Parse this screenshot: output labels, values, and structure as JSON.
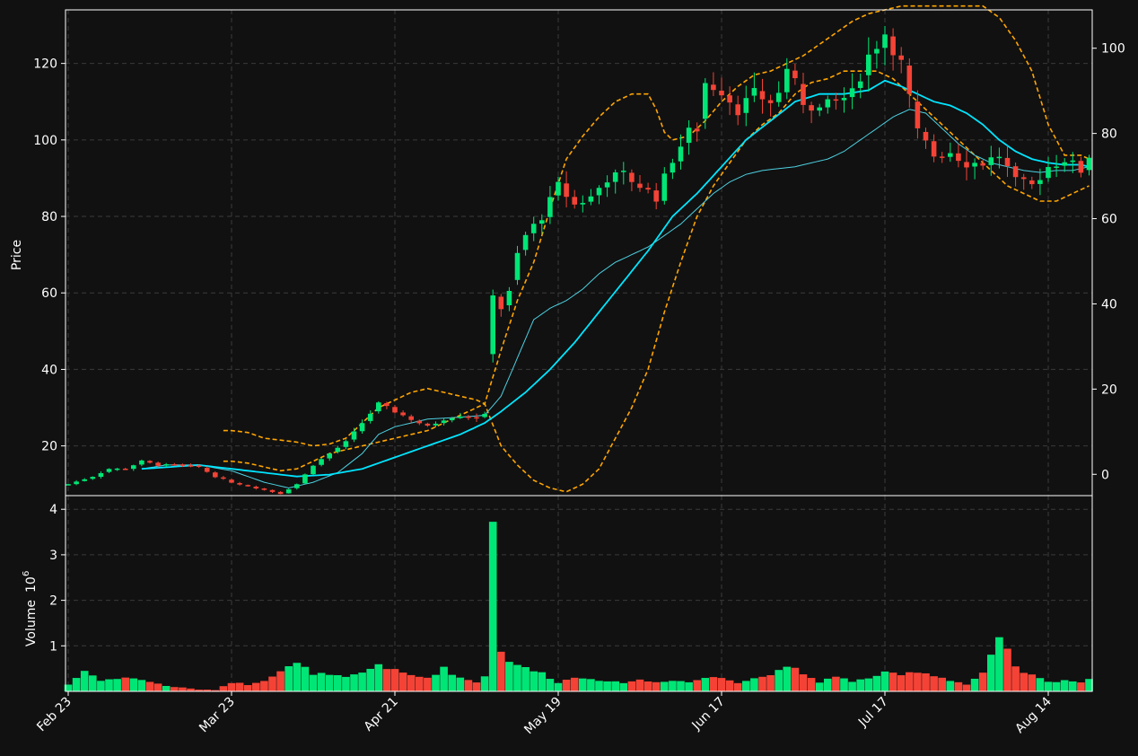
{
  "chart_data": {
    "type": "candlestick",
    "price_panel": {
      "ylabel": "Price",
      "ylim": [
        7,
        134
      ],
      "left_ticks": [
        20,
        40,
        60,
        80,
        100,
        120
      ],
      "secondary_ylim": [
        -5,
        109
      ],
      "right_ticks": [
        0,
        20,
        40,
        60,
        80,
        100
      ],
      "grid": true,
      "candle_up_color": "#00e676",
      "candle_down_color": "#f44336",
      "ma_fast_color": "#4dd0e1",
      "ma_slow_color": "#00e5ff",
      "band_color": "#ffa500"
    },
    "volume_panel": {
      "ylabel": "Volume",
      "ylabel_exponent": "10^6",
      "ylim": [
        0,
        4.3
      ],
      "ticks": [
        1,
        2,
        3,
        4
      ],
      "grid": true
    },
    "x_axis": {
      "ticks": [
        {
          "label": "Feb 23",
          "index": 0
        },
        {
          "label": "Mar 23",
          "index": 20
        },
        {
          "label": "Apr 21",
          "index": 40
        },
        {
          "label": "May 19",
          "index": 60
        },
        {
          "label": "Jun 17",
          "index": 80
        },
        {
          "label": "Jul 17",
          "index": 100
        },
        {
          "label": "Aug 14",
          "index": 120
        }
      ],
      "session_count": 126
    },
    "anchors": {
      "close": [
        [
          0,
          10
        ],
        [
          3,
          12
        ],
        [
          5,
          14
        ],
        [
          7,
          14
        ],
        [
          9,
          16
        ],
        [
          11,
          15
        ],
        [
          13,
          15
        ],
        [
          16,
          14.5
        ],
        [
          18,
          12
        ],
        [
          20,
          10.5
        ],
        [
          23,
          9
        ],
        [
          26,
          7.5
        ],
        [
          28,
          10
        ],
        [
          30,
          15
        ],
        [
          32,
          18
        ],
        [
          34,
          21
        ],
        [
          36,
          26
        ],
        [
          38,
          31
        ],
        [
          40,
          29
        ],
        [
          42,
          27
        ],
        [
          44,
          25
        ],
        [
          46,
          27
        ],
        [
          48,
          28
        ],
        [
          50,
          27.5
        ],
        [
          51,
          28
        ],
        [
          52,
          60
        ],
        [
          53,
          56
        ],
        [
          54,
          60
        ],
        [
          55,
          70
        ],
        [
          56,
          75
        ],
        [
          58,
          80
        ],
        [
          60,
          88
        ],
        [
          62,
          83
        ],
        [
          64,
          85
        ],
        [
          66,
          90
        ],
        [
          68,
          91
        ],
        [
          70,
          88
        ],
        [
          72,
          85
        ],
        [
          74,
          95
        ],
        [
          76,
          102
        ],
        [
          77,
          103
        ],
        [
          78,
          115
        ],
        [
          80,
          113
        ],
        [
          82,
          108
        ],
        [
          84,
          112
        ],
        [
          86,
          110
        ],
        [
          87,
          112
        ],
        [
          88,
          119
        ],
        [
          90,
          110
        ],
        [
          92,
          108
        ],
        [
          94,
          110
        ],
        [
          96,
          112
        ],
        [
          98,
          122
        ],
        [
          100,
          128
        ],
        [
          102,
          120
        ],
        [
          104,
          102
        ],
        [
          106,
          96
        ],
        [
          108,
          97
        ],
        [
          110,
          94
        ],
        [
          112,
          94
        ],
        [
          114,
          96
        ],
        [
          116,
          89
        ],
        [
          118,
          88
        ],
        [
          120,
          93
        ],
        [
          122,
          95
        ],
        [
          124,
          92
        ],
        [
          125,
          96
        ]
      ],
      "ma_fast": [
        [
          9,
          14
        ],
        [
          12,
          15
        ],
        [
          16,
          15
        ],
        [
          20,
          13.5
        ],
        [
          24,
          10.5
        ],
        [
          27,
          9
        ],
        [
          30,
          10.5
        ],
        [
          33,
          13
        ],
        [
          36,
          18
        ],
        [
          38,
          23
        ],
        [
          40,
          25
        ],
        [
          44,
          27
        ],
        [
          48,
          27.5
        ],
        [
          51,
          28
        ],
        [
          53,
          33
        ],
        [
          55,
          43
        ],
        [
          57,
          53
        ],
        [
          59,
          56
        ],
        [
          61,
          58
        ],
        [
          63,
          61
        ],
        [
          65,
          65
        ],
        [
          67,
          68
        ],
        [
          69,
          70
        ],
        [
          71,
          72
        ],
        [
          73,
          75
        ],
        [
          75,
          78
        ],
        [
          77,
          82
        ],
        [
          79,
          86
        ],
        [
          81,
          89
        ],
        [
          83,
          91
        ],
        [
          85,
          92
        ],
        [
          87,
          92.5
        ],
        [
          89,
          93
        ],
        [
          91,
          94
        ],
        [
          93,
          95
        ],
        [
          95,
          97
        ],
        [
          97,
          100
        ],
        [
          99,
          103
        ],
        [
          101,
          106
        ],
        [
          103,
          108
        ],
        [
          105,
          107
        ],
        [
          107,
          103
        ],
        [
          109,
          99
        ],
        [
          111,
          96
        ],
        [
          113,
          94
        ],
        [
          115,
          93
        ],
        [
          117,
          92
        ],
        [
          119,
          91.5
        ],
        [
          121,
          92
        ],
        [
          123,
          92
        ],
        [
          125,
          93
        ]
      ],
      "ma_slow": [
        [
          9,
          14
        ],
        [
          16,
          15
        ],
        [
          20,
          14
        ],
        [
          24,
          13
        ],
        [
          28,
          12
        ],
        [
          32,
          12.5
        ],
        [
          36,
          14
        ],
        [
          40,
          17
        ],
        [
          44,
          20
        ],
        [
          48,
          23
        ],
        [
          51,
          26
        ],
        [
          53,
          29
        ],
        [
          56,
          34
        ],
        [
          59,
          40
        ],
        [
          62,
          47
        ],
        [
          65,
          55
        ],
        [
          68,
          63
        ],
        [
          71,
          71
        ],
        [
          74,
          80
        ],
        [
          77,
          86
        ],
        [
          80,
          93
        ],
        [
          83,
          100
        ],
        [
          86,
          105
        ],
        [
          89,
          110
        ],
        [
          92,
          112
        ],
        [
          95,
          112
        ],
        [
          98,
          113
        ],
        [
          100,
          115.5
        ],
        [
          102,
          114
        ],
        [
          104,
          112
        ],
        [
          106,
          110
        ],
        [
          108,
          109
        ],
        [
          110,
          107
        ],
        [
          112,
          104
        ],
        [
          114,
          100
        ],
        [
          116,
          97
        ],
        [
          118,
          95
        ],
        [
          120,
          94
        ],
        [
          122,
          93.5
        ],
        [
          124,
          93.5
        ],
        [
          125,
          93
        ]
      ],
      "band_upper": [
        [
          19,
          24
        ],
        [
          20,
          24
        ],
        [
          22,
          23.5
        ],
        [
          24,
          22
        ],
        [
          26,
          21.5
        ],
        [
          28,
          21
        ],
        [
          30,
          20
        ],
        [
          32,
          20.5
        ],
        [
          34,
          22
        ],
        [
          36,
          26
        ],
        [
          38,
          30
        ],
        [
          40,
          32
        ],
        [
          42,
          34
        ],
        [
          44,
          35
        ],
        [
          46,
          34
        ],
        [
          48,
          33
        ],
        [
          50,
          32
        ],
        [
          51,
          31
        ],
        [
          53,
          45
        ],
        [
          55,
          58
        ],
        [
          57,
          68
        ],
        [
          59,
          82
        ],
        [
          61,
          95
        ],
        [
          63,
          101
        ],
        [
          65,
          106
        ],
        [
          67,
          110
        ],
        [
          69,
          112
        ],
        [
          71,
          112
        ],
        [
          72,
          108
        ],
        [
          73,
          102
        ],
        [
          74,
          100
        ],
        [
          76,
          101
        ],
        [
          78,
          105
        ],
        [
          80,
          110
        ],
        [
          82,
          114
        ],
        [
          84,
          117
        ],
        [
          86,
          118
        ],
        [
          88,
          120
        ],
        [
          90,
          122
        ],
        [
          92,
          125
        ],
        [
          94,
          128
        ],
        [
          96,
          131
        ],
        [
          98,
          133
        ],
        [
          100,
          134
        ],
        [
          102,
          135
        ],
        [
          104,
          135
        ],
        [
          106,
          135
        ],
        [
          108,
          135
        ],
        [
          110,
          135
        ],
        [
          112,
          135
        ],
        [
          114,
          132
        ],
        [
          116,
          126
        ],
        [
          118,
          118
        ],
        [
          120,
          104
        ],
        [
          122,
          96
        ],
        [
          124,
          96
        ],
        [
          125,
          95
        ]
      ],
      "band_lower": [
        [
          19,
          16
        ],
        [
          20,
          16
        ],
        [
          22,
          15.5
        ],
        [
          24,
          14.5
        ],
        [
          26,
          13.5
        ],
        [
          28,
          14
        ],
        [
          30,
          16
        ],
        [
          32,
          18
        ],
        [
          34,
          19
        ],
        [
          36,
          20
        ],
        [
          38,
          21
        ],
        [
          40,
          22
        ],
        [
          42,
          23
        ],
        [
          44,
          24
        ],
        [
          46,
          26
        ],
        [
          48,
          28
        ],
        [
          50,
          30
        ],
        [
          51,
          31
        ],
        [
          53,
          20
        ],
        [
          55,
          15
        ],
        [
          57,
          11
        ],
        [
          59,
          9
        ],
        [
          61,
          8
        ],
        [
          63,
          10
        ],
        [
          65,
          14
        ],
        [
          67,
          22
        ],
        [
          69,
          30
        ],
        [
          71,
          40
        ],
        [
          73,
          55
        ],
        [
          75,
          68
        ],
        [
          77,
          80
        ],
        [
          79,
          88
        ],
        [
          81,
          94
        ],
        [
          83,
          100
        ],
        [
          85,
          104
        ],
        [
          87,
          107
        ],
        [
          89,
          112
        ],
        [
          91,
          115
        ],
        [
          93,
          116
        ],
        [
          95,
          118
        ],
        [
          97,
          118
        ],
        [
          99,
          118
        ],
        [
          101,
          116
        ],
        [
          103,
          112
        ],
        [
          105,
          108
        ],
        [
          107,
          104
        ],
        [
          109,
          100
        ],
        [
          111,
          96
        ],
        [
          113,
          92
        ],
        [
          115,
          88
        ],
        [
          117,
          86
        ],
        [
          119,
          84
        ],
        [
          121,
          84
        ],
        [
          123,
          86
        ],
        [
          125,
          88
        ]
      ],
      "volume": [
        [
          0,
          0.15
        ],
        [
          2,
          0.45
        ],
        [
          4,
          0.25
        ],
        [
          8,
          0.3
        ],
        [
          12,
          0.12
        ],
        [
          16,
          0.04
        ],
        [
          18,
          0.03
        ],
        [
          20,
          0.2
        ],
        [
          22,
          0.15
        ],
        [
          24,
          0.25
        ],
        [
          26,
          0.45
        ],
        [
          28,
          0.6
        ],
        [
          30,
          0.4
        ],
        [
          32,
          0.35
        ],
        [
          34,
          0.3
        ],
        [
          36,
          0.4
        ],
        [
          38,
          0.6
        ],
        [
          40,
          0.45
        ],
        [
          42,
          0.35
        ],
        [
          44,
          0.3
        ],
        [
          46,
          0.5
        ],
        [
          48,
          0.3
        ],
        [
          50,
          0.2
        ],
        [
          51,
          0.35
        ],
        [
          52,
          3.9
        ],
        [
          53,
          0.85
        ],
        [
          54,
          0.7
        ],
        [
          56,
          0.5
        ],
        [
          58,
          0.4
        ],
        [
          60,
          0.2
        ],
        [
          62,
          0.3
        ],
        [
          64,
          0.3
        ],
        [
          66,
          0.2
        ],
        [
          68,
          0.2
        ],
        [
          70,
          0.25
        ],
        [
          72,
          0.2
        ],
        [
          74,
          0.25
        ],
        [
          76,
          0.2
        ],
        [
          78,
          0.3
        ],
        [
          80,
          0.3
        ],
        [
          82,
          0.2
        ],
        [
          84,
          0.3
        ],
        [
          86,
          0.35
        ],
        [
          88,
          0.6
        ],
        [
          90,
          0.35
        ],
        [
          92,
          0.2
        ],
        [
          94,
          0.35
        ],
        [
          96,
          0.2
        ],
        [
          98,
          0.3
        ],
        [
          100,
          0.4
        ],
        [
          102,
          0.35
        ],
        [
          104,
          0.45
        ],
        [
          106,
          0.35
        ],
        [
          108,
          0.25
        ],
        [
          110,
          0.15
        ],
        [
          112,
          0.4
        ],
        [
          114,
          1.1
        ],
        [
          115,
          0.9
        ],
        [
          116,
          0.5
        ],
        [
          118,
          0.35
        ],
        [
          120,
          0.2
        ],
        [
          122,
          0.25
        ],
        [
          124,
          0.2
        ],
        [
          125,
          0.25
        ]
      ]
    }
  }
}
